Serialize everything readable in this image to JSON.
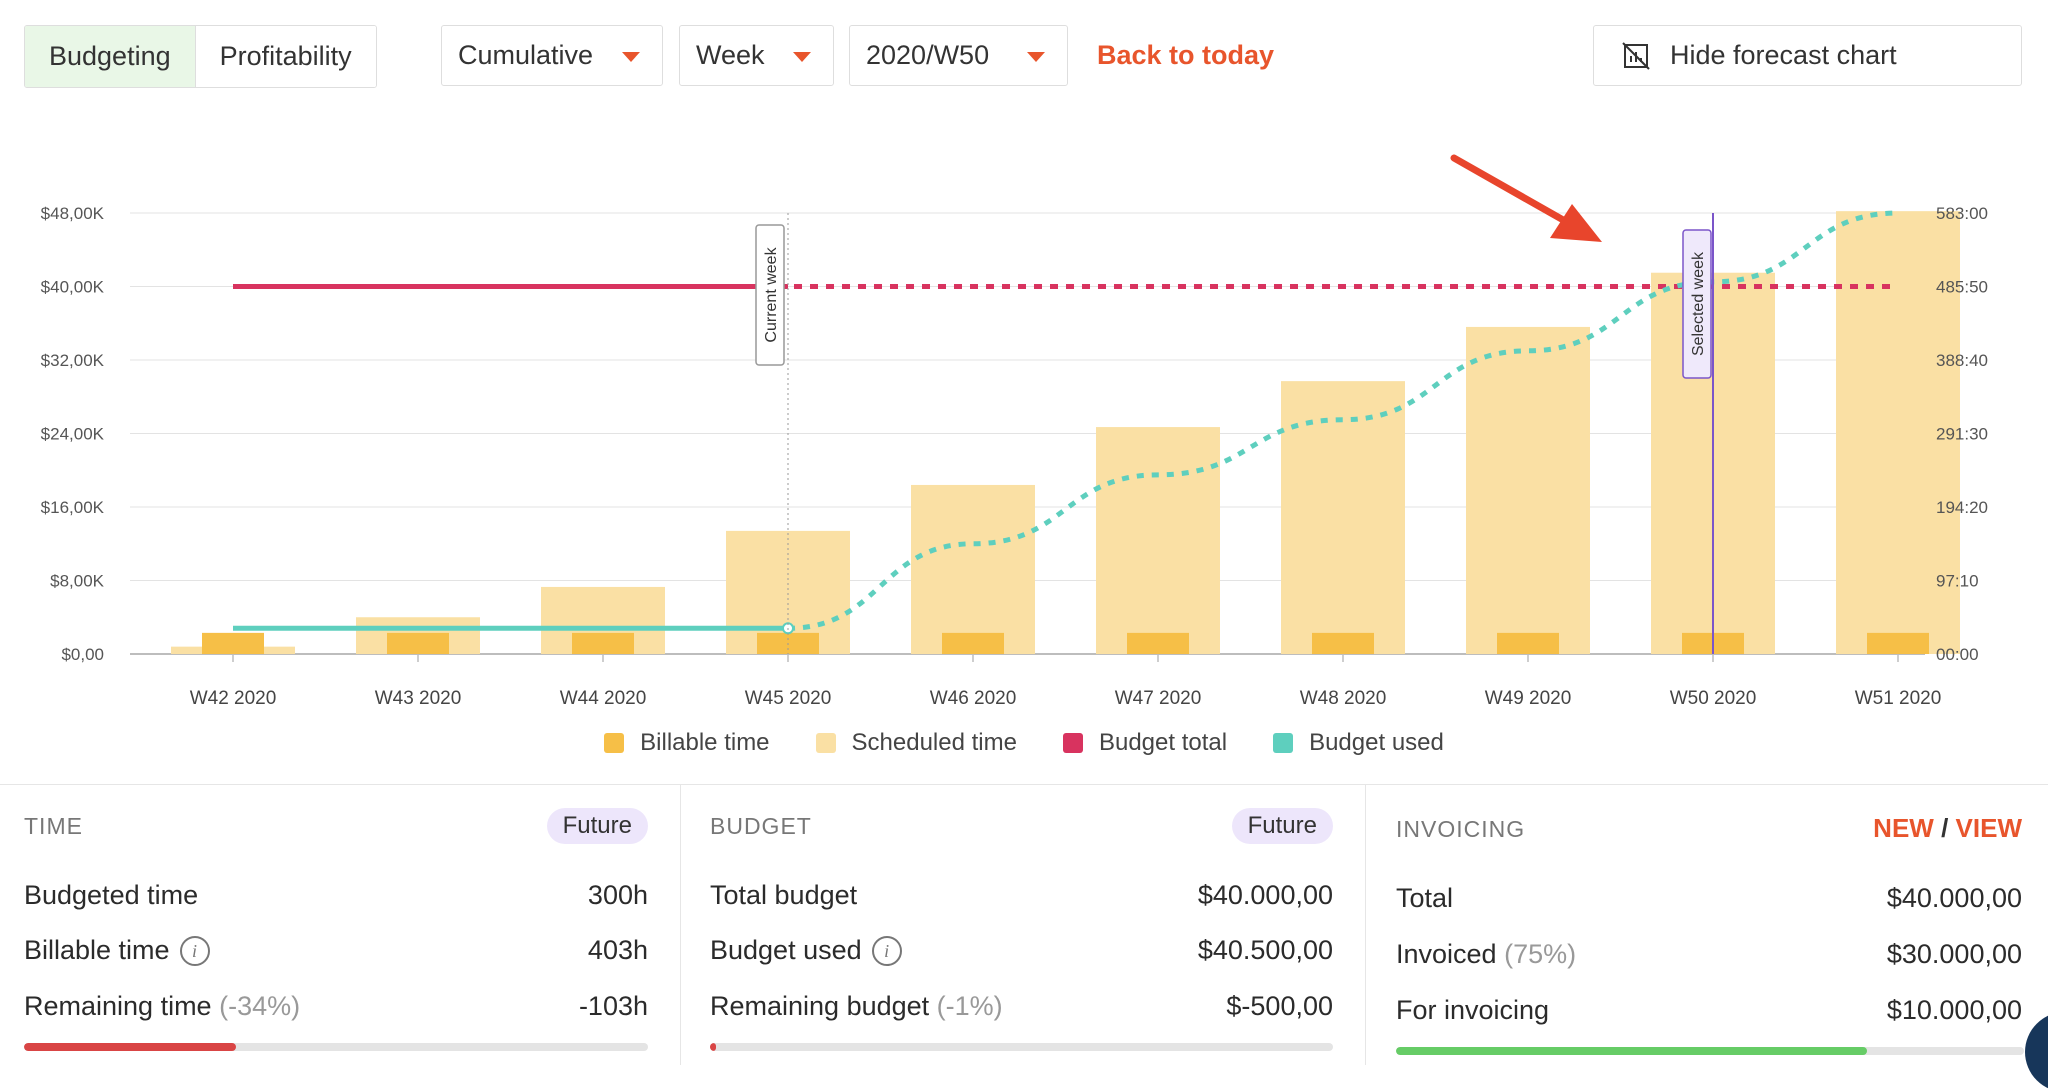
{
  "toolbar": {
    "tabs": [
      {
        "label": "Budgeting",
        "active": true
      },
      {
        "label": "Profitability",
        "active": false
      }
    ],
    "mode_select": "Cumulative",
    "period_select": "Week",
    "week_select": "2020/W50",
    "back_to_today": "Back to today",
    "hide_forecast": "Hide forecast chart"
  },
  "chart_data": {
    "type": "bar",
    "categories": [
      "W42 2020",
      "W43 2020",
      "W44 2020",
      "W45 2020",
      "W46 2020",
      "W47 2020",
      "W48 2020",
      "W49 2020",
      "W50 2020",
      "W51 2020"
    ],
    "y_left": {
      "ticks": [
        "$0,00",
        "$8,00K",
        "$16,00K",
        "$24,00K",
        "$32,00K",
        "$40,00K",
        "$48,00K"
      ],
      "range": [
        0,
        48000
      ]
    },
    "y_right": {
      "ticks": [
        "00:00",
        "97:10",
        "194:20",
        "291:30",
        "388:40",
        "485:50",
        "583:00"
      ]
    },
    "series": [
      {
        "name": "Billable time",
        "type": "bar",
        "color": "#f6bf47",
        "values": [
          2300,
          2300,
          2300,
          2300,
          2300,
          2300,
          2300,
          2300,
          2300,
          2300
        ]
      },
      {
        "name": "Scheduled time",
        "type": "bar",
        "color": "#fae0a4",
        "values": [
          800,
          4000,
          7300,
          13400,
          18400,
          24700,
          29700,
          35600,
          41500,
          48200
        ]
      },
      {
        "name": "Budget total",
        "type": "line",
        "color": "#d8335f",
        "values": [
          40000,
          40000,
          40000,
          40000,
          40000,
          40000,
          40000,
          40000,
          40000,
          40000
        ],
        "forecast_from_index": 3
      },
      {
        "name": "Budget used",
        "type": "line",
        "color": "#5ecfbe",
        "values": [
          2800,
          2800,
          2800,
          2800,
          12000,
          19500,
          25500,
          33000,
          40500,
          48000
        ],
        "forecast_from_index": 3
      }
    ],
    "markers": [
      {
        "label": "Current week",
        "category_index": 3
      },
      {
        "label": "Selected week",
        "category_index": 8
      }
    ],
    "grid": true,
    "legend_position": "bottom-center"
  },
  "legend": [
    {
      "label": "Billable time",
      "color": "#f6bf47"
    },
    {
      "label": "Scheduled time",
      "color": "#fae0a4"
    },
    {
      "label": "Budget total",
      "color": "#d8335f"
    },
    {
      "label": "Budget used",
      "color": "#5ecfbe"
    }
  ],
  "time_panel": {
    "title": "TIME",
    "badge": "Future",
    "budgeted_label": "Budgeted time",
    "budgeted_value": "300h",
    "billable_label": "Billable time",
    "billable_value": "403h",
    "remaining_label": "Remaining time",
    "remaining_pct": "(-34%)",
    "remaining_value": "-103h",
    "progress": 0.34,
    "progress_color": "#d94545"
  },
  "budget_panel": {
    "title": "BUDGET",
    "badge": "Future",
    "total_label": "Total budget",
    "total_value": "$40.000,00",
    "used_label": "Budget used",
    "used_value": "$40.500,00",
    "remaining_label": "Remaining budget",
    "remaining_pct": "(-1%)",
    "remaining_value": "$-500,00",
    "progress": 0.01,
    "progress_color": "#d94545"
  },
  "invoicing_panel": {
    "title": "INVOICING",
    "new_label": "NEW",
    "separator": "/",
    "view_label": "VIEW",
    "total_label": "Total",
    "total_value": "$40.000,00",
    "invoiced_label": "Invoiced",
    "invoiced_pct": "(75%)",
    "invoiced_value": "$30.000,00",
    "for_invoicing_label": "For invoicing",
    "for_invoicing_value": "$10.000,00",
    "progress": 0.75,
    "progress_color": "#66cc66"
  },
  "icons": {
    "caret": "caret-down-icon",
    "hide_chart": "chart-off-icon",
    "info": "info-icon",
    "arrow": "annotation-arrow"
  }
}
